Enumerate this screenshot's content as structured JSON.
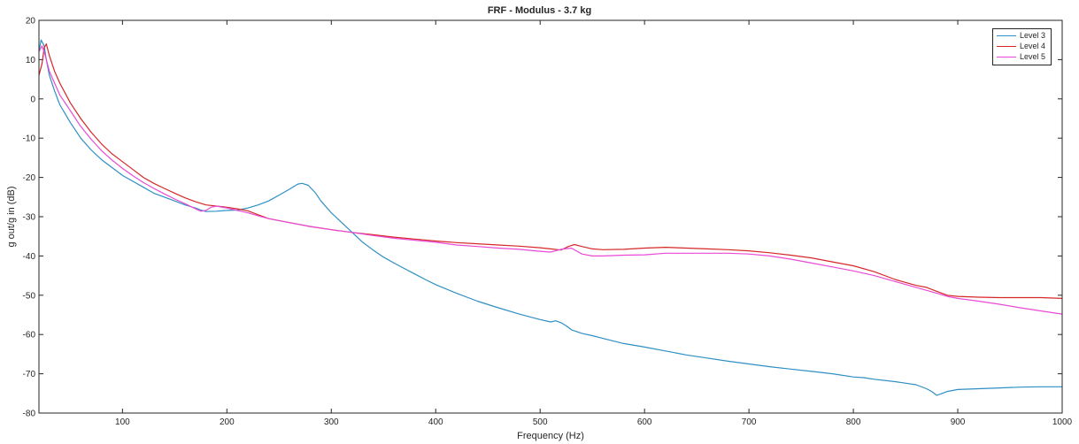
{
  "chart_data": {
    "type": "line",
    "title": "FRF - Modulus - 3.7 kg",
    "xlabel": "Frequency (Hz)",
    "ylabel": "g out/g in (dB)",
    "xlim": [
      20,
      1000
    ],
    "ylim": [
      -80,
      20
    ],
    "xticks": [
      100,
      200,
      300,
      400,
      500,
      600,
      700,
      800,
      900,
      1000
    ],
    "yticks": [
      20,
      10,
      0,
      -10,
      -20,
      -30,
      -40,
      -50,
      -60,
      -70,
      -80
    ],
    "grid": false,
    "legend_position": "top-right",
    "series": [
      {
        "name": "Level 3",
        "color": "#2e8fc4",
        "points": [
          [
            20,
            12
          ],
          [
            22,
            15
          ],
          [
            25,
            13.5
          ],
          [
            27,
            10
          ],
          [
            30,
            6
          ],
          [
            35,
            2
          ],
          [
            40,
            -1.5
          ],
          [
            50,
            -6
          ],
          [
            60,
            -10
          ],
          [
            70,
            -13
          ],
          [
            80,
            -15.5
          ],
          [
            90,
            -17.5
          ],
          [
            100,
            -19.5
          ],
          [
            110,
            -21
          ],
          [
            120,
            -22.5
          ],
          [
            130,
            -24
          ],
          [
            140,
            -25
          ],
          [
            150,
            -26
          ],
          [
            160,
            -27
          ],
          [
            170,
            -27.8
          ],
          [
            175,
            -28.3
          ],
          [
            180,
            -28.7
          ],
          [
            190,
            -28.6
          ],
          [
            200,
            -28.4
          ],
          [
            210,
            -28.3
          ],
          [
            220,
            -27.8
          ],
          [
            230,
            -27
          ],
          [
            240,
            -26
          ],
          [
            250,
            -24.5
          ],
          [
            260,
            -23
          ],
          [
            268,
            -21.7
          ],
          [
            272,
            -21.5
          ],
          [
            278,
            -22
          ],
          [
            285,
            -24
          ],
          [
            290,
            -26
          ],
          [
            300,
            -29
          ],
          [
            310,
            -31.5
          ],
          [
            320,
            -34
          ],
          [
            330,
            -36.5
          ],
          [
            340,
            -38.5
          ],
          [
            350,
            -40.3
          ],
          [
            360,
            -41.8
          ],
          [
            370,
            -43.2
          ],
          [
            380,
            -44.6
          ],
          [
            390,
            -46
          ],
          [
            400,
            -47.3
          ],
          [
            420,
            -49.5
          ],
          [
            440,
            -51.5
          ],
          [
            460,
            -53.2
          ],
          [
            480,
            -54.8
          ],
          [
            500,
            -56.2
          ],
          [
            510,
            -56.8
          ],
          [
            515,
            -56.5
          ],
          [
            520,
            -57
          ],
          [
            525,
            -57.8
          ],
          [
            530,
            -58.8
          ],
          [
            540,
            -59.7
          ],
          [
            550,
            -60.3
          ],
          [
            560,
            -61
          ],
          [
            580,
            -62.3
          ],
          [
            600,
            -63.2
          ],
          [
            620,
            -64.2
          ],
          [
            640,
            -65.2
          ],
          [
            660,
            -66
          ],
          [
            680,
            -66.8
          ],
          [
            700,
            -67.5
          ],
          [
            720,
            -68.2
          ],
          [
            740,
            -68.8
          ],
          [
            760,
            -69.4
          ],
          [
            780,
            -70
          ],
          [
            800,
            -70.8
          ],
          [
            810,
            -71
          ],
          [
            820,
            -71.4
          ],
          [
            840,
            -72
          ],
          [
            860,
            -72.8
          ],
          [
            870,
            -73.8
          ],
          [
            875,
            -74.5
          ],
          [
            880,
            -75.5
          ],
          [
            885,
            -75
          ],
          [
            890,
            -74.5
          ],
          [
            900,
            -74
          ],
          [
            920,
            -73.8
          ],
          [
            940,
            -73.6
          ],
          [
            960,
            -73.4
          ],
          [
            980,
            -73.3
          ],
          [
            1000,
            -73.3
          ]
        ]
      },
      {
        "name": "Level 4",
        "color": "#d62728",
        "points": [
          [
            20,
            6
          ],
          [
            23,
            9
          ],
          [
            25,
            13
          ],
          [
            27,
            14
          ],
          [
            30,
            11
          ],
          [
            35,
            7
          ],
          [
            40,
            4
          ],
          [
            50,
            -1
          ],
          [
            60,
            -5
          ],
          [
            70,
            -8.5
          ],
          [
            80,
            -11.5
          ],
          [
            90,
            -14
          ],
          [
            100,
            -16
          ],
          [
            110,
            -18
          ],
          [
            120,
            -20
          ],
          [
            130,
            -21.5
          ],
          [
            140,
            -22.8
          ],
          [
            150,
            -24
          ],
          [
            160,
            -25.2
          ],
          [
            170,
            -26.2
          ],
          [
            180,
            -27
          ],
          [
            190,
            -27.3
          ],
          [
            200,
            -27.6
          ],
          [
            210,
            -28
          ],
          [
            220,
            -28.5
          ],
          [
            230,
            -29.5
          ],
          [
            240,
            -30.5
          ],
          [
            260,
            -31.5
          ],
          [
            280,
            -32.5
          ],
          [
            300,
            -33.3
          ],
          [
            320,
            -34
          ],
          [
            340,
            -34.6
          ],
          [
            360,
            -35.2
          ],
          [
            380,
            -35.7
          ],
          [
            400,
            -36.2
          ],
          [
            420,
            -36.6
          ],
          [
            440,
            -36.9
          ],
          [
            460,
            -37.2
          ],
          [
            480,
            -37.5
          ],
          [
            500,
            -37.9
          ],
          [
            510,
            -38.2
          ],
          [
            520,
            -38.5
          ],
          [
            527,
            -37.6
          ],
          [
            533,
            -37.1
          ],
          [
            540,
            -37.6
          ],
          [
            550,
            -38.2
          ],
          [
            560,
            -38.4
          ],
          [
            580,
            -38.3
          ],
          [
            600,
            -38
          ],
          [
            620,
            -37.8
          ],
          [
            640,
            -38
          ],
          [
            660,
            -38.2
          ],
          [
            680,
            -38.4
          ],
          [
            700,
            -38.7
          ],
          [
            720,
            -39.2
          ],
          [
            740,
            -39.8
          ],
          [
            760,
            -40.5
          ],
          [
            780,
            -41.5
          ],
          [
            800,
            -42.5
          ],
          [
            820,
            -44
          ],
          [
            840,
            -46
          ],
          [
            860,
            -47.5
          ],
          [
            870,
            -48
          ],
          [
            880,
            -49
          ],
          [
            890,
            -50
          ],
          [
            900,
            -50.3
          ],
          [
            920,
            -50.5
          ],
          [
            940,
            -50.6
          ],
          [
            960,
            -50.6
          ],
          [
            980,
            -50.6
          ],
          [
            1000,
            -50.8
          ]
        ]
      },
      {
        "name": "Level 5",
        "color": "#e84ad6",
        "points": [
          [
            20,
            12
          ],
          [
            23,
            13.5
          ],
          [
            25,
            12
          ],
          [
            27,
            10
          ],
          [
            30,
            7
          ],
          [
            35,
            4
          ],
          [
            40,
            1
          ],
          [
            50,
            -3
          ],
          [
            60,
            -7
          ],
          [
            70,
            -10.3
          ],
          [
            80,
            -13.2
          ],
          [
            90,
            -15.6
          ],
          [
            100,
            -17.7
          ],
          [
            110,
            -19.6
          ],
          [
            120,
            -21.3
          ],
          [
            130,
            -22.8
          ],
          [
            140,
            -24.2
          ],
          [
            150,
            -25.5
          ],
          [
            160,
            -26.7
          ],
          [
            170,
            -28
          ],
          [
            175,
            -28.6
          ],
          [
            180,
            -28.4
          ],
          [
            185,
            -27.6
          ],
          [
            190,
            -27.3
          ],
          [
            200,
            -27.8
          ],
          [
            210,
            -28.4
          ],
          [
            220,
            -29
          ],
          [
            230,
            -29.8
          ],
          [
            240,
            -30.5
          ],
          [
            260,
            -31.5
          ],
          [
            280,
            -32.5
          ],
          [
            300,
            -33.3
          ],
          [
            320,
            -34
          ],
          [
            340,
            -34.8
          ],
          [
            360,
            -35.5
          ],
          [
            380,
            -36
          ],
          [
            400,
            -36.5
          ],
          [
            420,
            -37.2
          ],
          [
            440,
            -37.6
          ],
          [
            460,
            -38
          ],
          [
            480,
            -38.3
          ],
          [
            500,
            -38.8
          ],
          [
            510,
            -39
          ],
          [
            520,
            -38.3
          ],
          [
            530,
            -38
          ],
          [
            540,
            -39.5
          ],
          [
            550,
            -40
          ],
          [
            560,
            -40
          ],
          [
            580,
            -39.8
          ],
          [
            600,
            -39.7
          ],
          [
            620,
            -39.3
          ],
          [
            640,
            -39.3
          ],
          [
            660,
            -39.3
          ],
          [
            680,
            -39.3
          ],
          [
            700,
            -39.5
          ],
          [
            720,
            -40
          ],
          [
            740,
            -40.8
          ],
          [
            760,
            -41.8
          ],
          [
            780,
            -42.8
          ],
          [
            800,
            -43.8
          ],
          [
            820,
            -45
          ],
          [
            840,
            -46.5
          ],
          [
            860,
            -48
          ],
          [
            880,
            -49.5
          ],
          [
            890,
            -50.3
          ],
          [
            900,
            -50.8
          ],
          [
            920,
            -51.5
          ],
          [
            940,
            -52.3
          ],
          [
            960,
            -53.2
          ],
          [
            980,
            -54
          ],
          [
            1000,
            -54.8
          ]
        ]
      }
    ]
  }
}
